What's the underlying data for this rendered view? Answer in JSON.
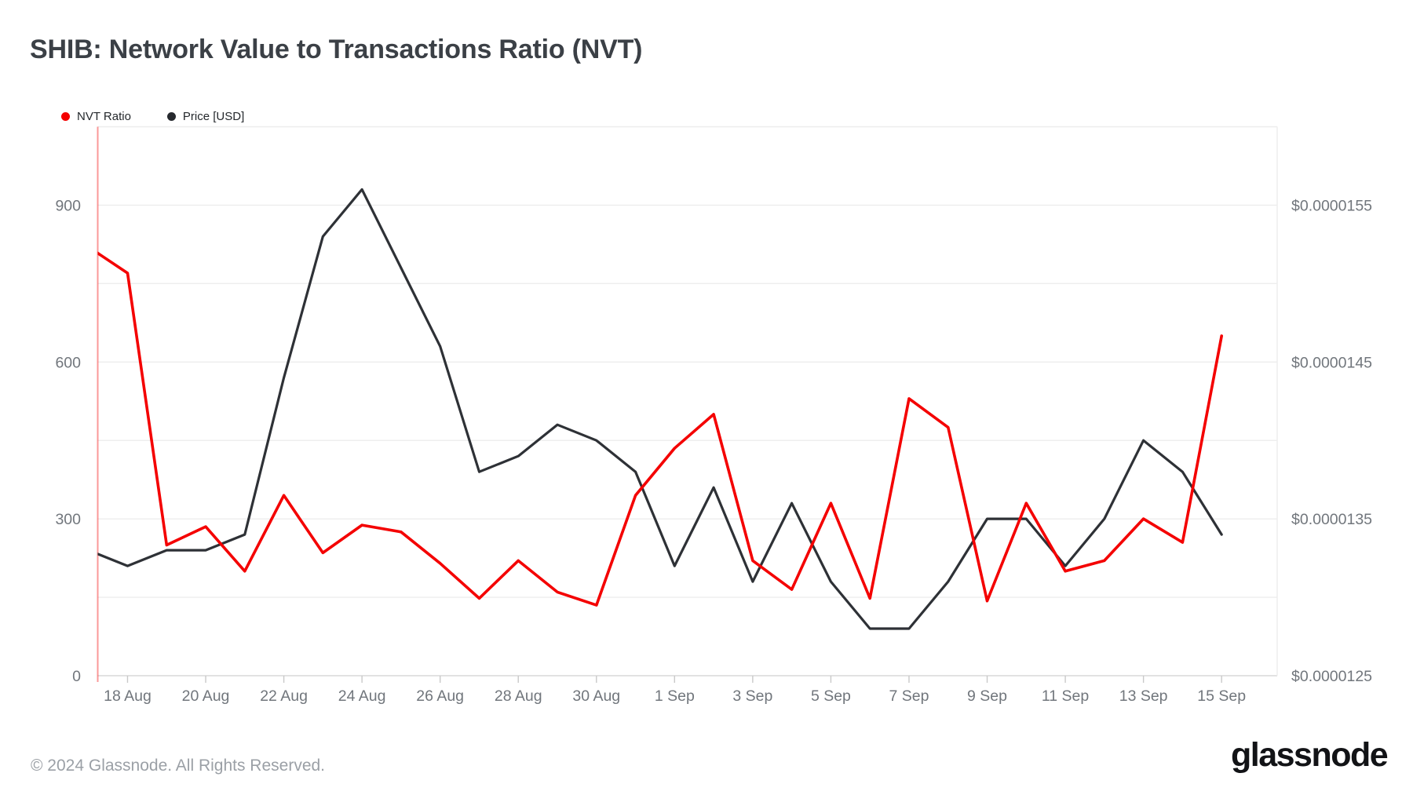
{
  "header": {
    "title": "SHIB: Network Value to Transactions Ratio (NVT)"
  },
  "legend": [
    {
      "label": "NVT Ratio",
      "color": "#f40000"
    },
    {
      "label": "Price [USD]",
      "color": "#26292e"
    }
  ],
  "footer": {
    "copyright": "© 2024 Glassnode. All Rights Reserved.",
    "logo_text": "glassnode"
  },
  "chart_data": {
    "type": "line",
    "title": "SHIB: Network Value to Transactions Ratio (NVT)",
    "grid": true,
    "legend_position": "top-left",
    "x": [
      "17 Aug",
      "18 Aug",
      "19 Aug",
      "20 Aug",
      "21 Aug",
      "22 Aug",
      "23 Aug",
      "24 Aug",
      "25 Aug",
      "26 Aug",
      "27 Aug",
      "28 Aug",
      "29 Aug",
      "30 Aug",
      "31 Aug",
      "1 Sep",
      "2 Sep",
      "3 Sep",
      "4 Sep",
      "5 Sep",
      "6 Sep",
      "7 Sep",
      "8 Sep",
      "9 Sep",
      "10 Sep",
      "11 Sep",
      "12 Sep",
      "13 Sep",
      "14 Sep",
      "15 Sep"
    ],
    "x_tick_labels": [
      "18 Aug",
      "20 Aug",
      "22 Aug",
      "24 Aug",
      "26 Aug",
      "28 Aug",
      "30 Aug",
      "1 Sep",
      "3 Sep",
      "5 Sep",
      "7 Sep",
      "9 Sep",
      "11 Sep",
      "13 Sep",
      "15 Sep"
    ],
    "series": [
      {
        "name": "NVT Ratio",
        "axis": "left",
        "color": "#f40000",
        "values": [
          820,
          770,
          250,
          285,
          200,
          345,
          235,
          288,
          275,
          215,
          148,
          220,
          160,
          135,
          345,
          435,
          500,
          220,
          165,
          330,
          148,
          530,
          475,
          143,
          330,
          200,
          220,
          300,
          255,
          650
        ]
      },
      {
        "name": "Price [USD]",
        "axis": "right",
        "color": "#2e3136",
        "values": [
          1.33e-05,
          1.32e-05,
          1.33e-05,
          1.33e-05,
          1.34e-05,
          1.44e-05,
          1.53e-05,
          1.56e-05,
          1.51e-05,
          1.46e-05,
          1.38e-05,
          1.39e-05,
          1.41e-05,
          1.4e-05,
          1.38e-05,
          1.32e-05,
          1.37e-05,
          1.31e-05,
          1.36e-05,
          1.31e-05,
          1.28e-05,
          1.28e-05,
          1.31e-05,
          1.35e-05,
          1.35e-05,
          1.32e-05,
          1.35e-05,
          1.4e-05,
          1.38e-05,
          1.34e-05
        ]
      }
    ],
    "left_axis": {
      "min": 0,
      "max": 1050,
      "grid_step": 150,
      "ticks": [
        0,
        300,
        600,
        900
      ]
    },
    "right_axis": {
      "min": 1.25e-05,
      "max": 1.6e-05,
      "tick_labels": [
        "$0.0000125",
        "$0.0000135",
        "$0.0000145",
        "$0.0000155"
      ]
    },
    "colors": {
      "grid": "#ededed",
      "axis_line": "#d8d8d8",
      "tick_mark": "#c9c9c9",
      "axis_label": "#71767c",
      "crosshair": "rgba(244,0,0,0.4)"
    }
  }
}
